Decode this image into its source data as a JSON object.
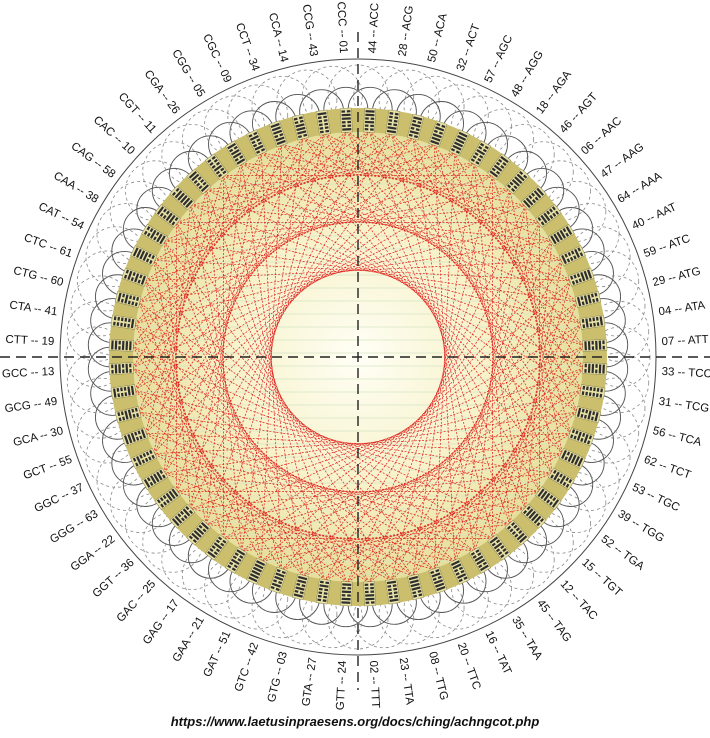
{
  "labels": [
    "44 -- ACC",
    "28 -- ACG",
    "50 -- ACA",
    "32 -- ACT",
    "57 -- AGC",
    "48 -- AGG",
    "18 -- AGA",
    "46 -- AGT",
    "06 -- AAC",
    "47 -- AAG",
    "64 -- AAA",
    "40 -- AAT",
    "59 -- ATC",
    "29 -- ATG",
    "04 -- ATA",
    "07 -- ATT",
    "33 -- TCC",
    "31 -- TCG",
    "56 -- TCA",
    "62 -- TCT",
    "53 -- TGC",
    "39 -- TGG",
    "52 -- TGA",
    "15 -- TGT",
    "12 -- TAC",
    "45 -- TAG",
    "35 -- TAA",
    "16 -- TAT",
    "20 -- TTC",
    "08 -- TTG",
    "23 -- TTA",
    "02 -- TTT",
    "GTT -- 24",
    "GTA -- 27",
    "GTG -- 03",
    "GTC -- 42",
    "GAT -- 51",
    "GAA -- 21",
    "GAG -- 17",
    "GAC -- 25",
    "GGT -- 36",
    "GGA -- 22",
    "GGG -- 63",
    "GGC -- 37",
    "GCT -- 55",
    "GCA -- 30",
    "GCG -- 49",
    "GCC -- 13",
    "CTT -- 19",
    "CTA -- 41",
    "CTG -- 60",
    "CTC -- 61",
    "CAT -- 54",
    "CAA -- 38",
    "CAG -- 58",
    "CAC -- 10",
    "CGT -- 11",
    "CGA -- 26",
    "CGG -- 05",
    "CGC -- 09",
    "CCT -- 34",
    "CCA -- 14",
    "CCG -- 43",
    "CCC -- 01"
  ],
  "caption": "https://www.laetusinpraesens.org/docs/ching/achngcot.php",
  "colors": {
    "sphere_center": "#fffff6",
    "sphere_edge": "#e4dd98",
    "chords": "#e0201b",
    "hexagram_lines": "#2e2e2e",
    "tiles": "#e9e2a6",
    "loops": "#555555",
    "axes": "#222222"
  }
}
